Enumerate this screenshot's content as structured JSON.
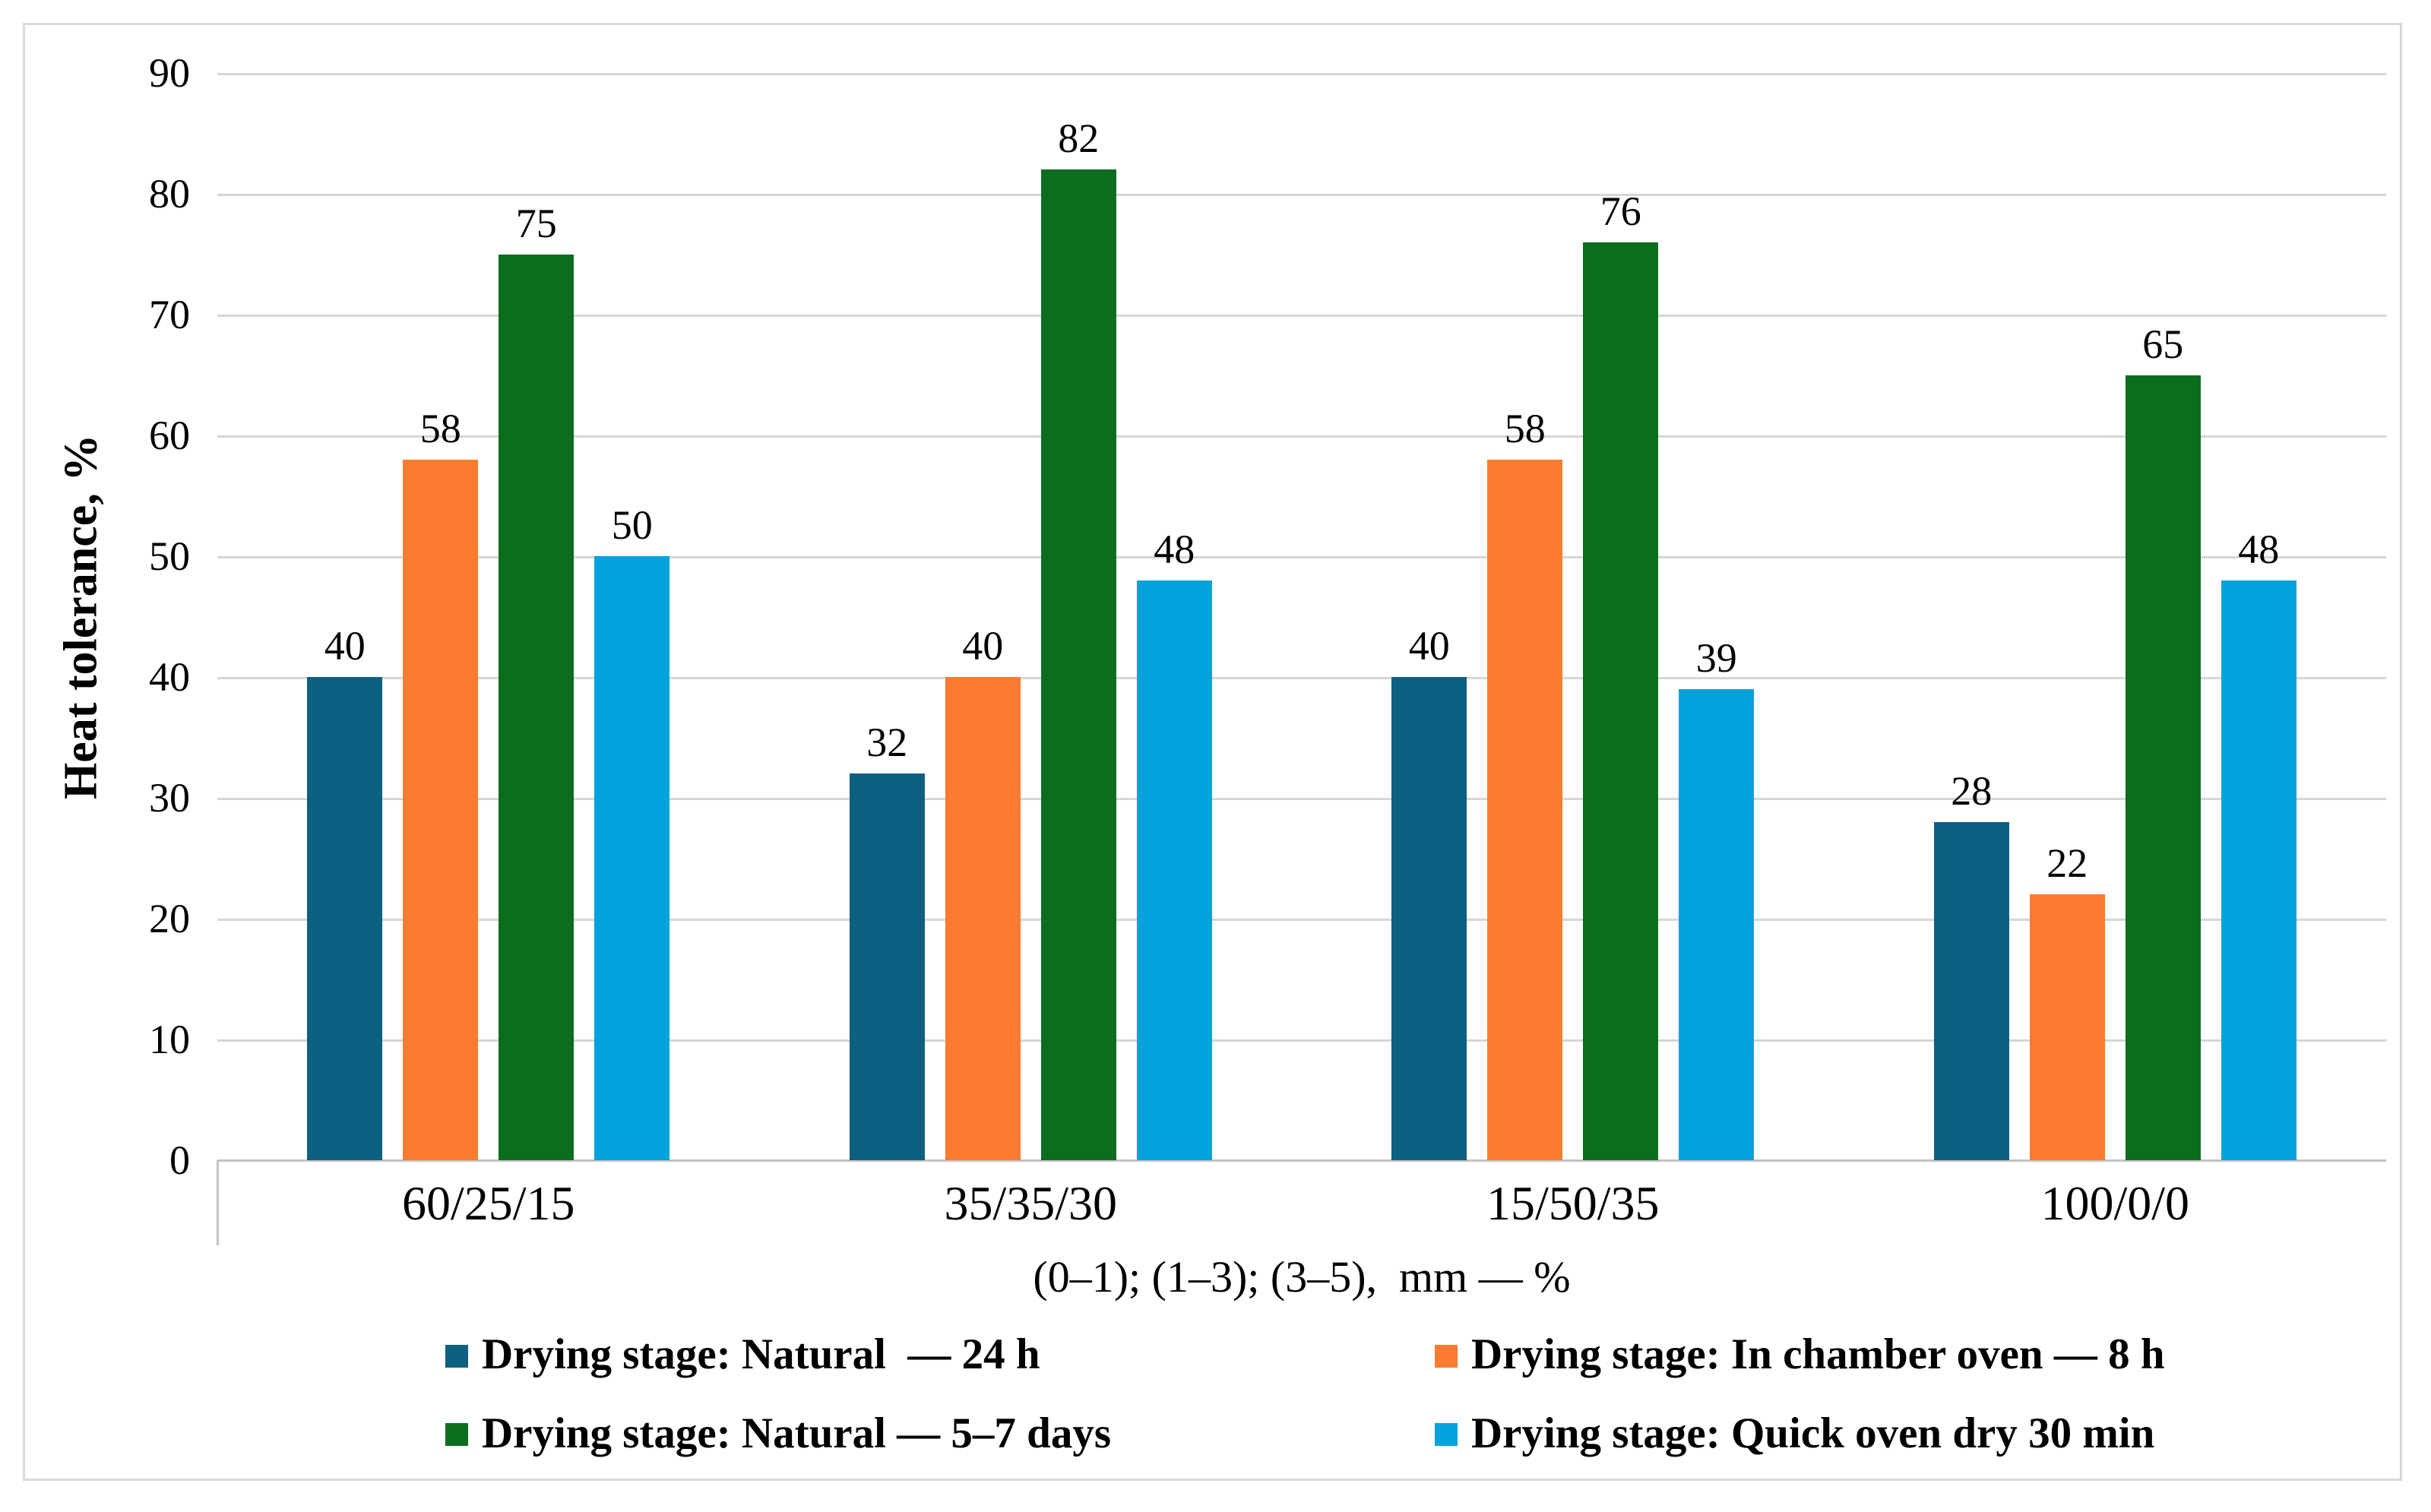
{
  "chart_data": {
    "type": "bar",
    "title": "",
    "categories": [
      "60/25/15",
      "35/35/30",
      "15/50/35",
      "100/0/0"
    ],
    "series": [
      {
        "name": "Drying stage: Natural  — 24 h",
        "color": "#0E6080",
        "values": [
          40,
          32,
          40,
          28
        ]
      },
      {
        "name": "Drying stage: In chamber oven — 8 h",
        "color": "#FB7B30",
        "values": [
          58,
          40,
          58,
          22
        ]
      },
      {
        "name": "Drying stage: Natural — 5–7 days",
        "color": "#0B6E1E",
        "values": [
          75,
          82,
          76,
          65
        ]
      },
      {
        "name": "Drying stage: Quick oven dry 30 min",
        "color": "#00A3DC",
        "values": [
          50,
          48,
          39,
          48
        ]
      }
    ],
    "xlabel": "(0–1); (1–3); (3–5),  mm — %",
    "ylabel": "Heat tolerance, %",
    "ylim": [
      0,
      90
    ],
    "ytick_step": 10,
    "grid": "horizontal",
    "data_labels": true,
    "legend_position": "bottom",
    "legend_columns": 2
  },
  "style_colors": {
    "gridline": "#d6d6d6",
    "axis_line": "#c2c2c2",
    "frame_border": "#d9d9d9",
    "text": "#000000",
    "background": "#ffffff"
  }
}
